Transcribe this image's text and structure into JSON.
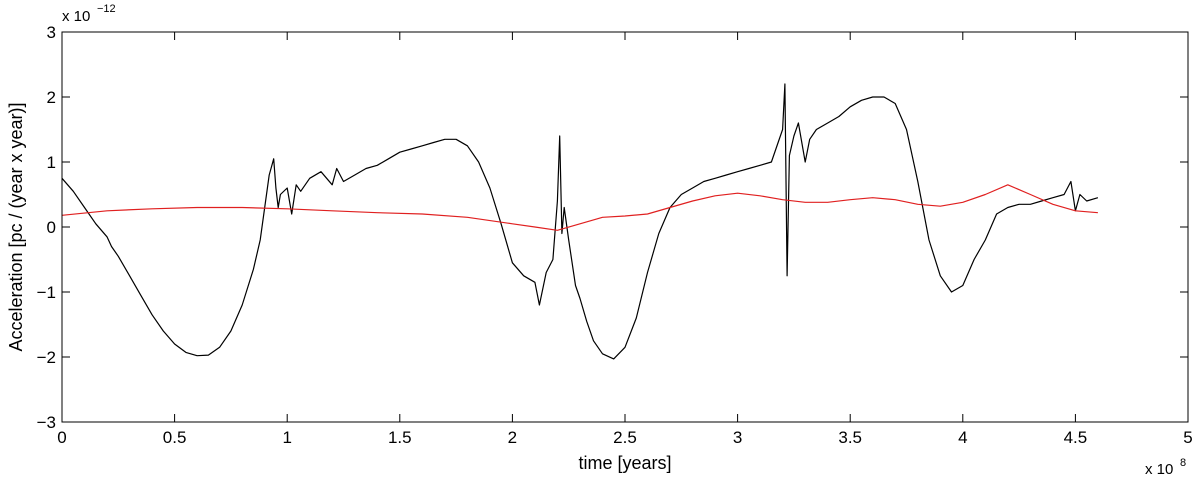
{
  "chart_data": {
    "type": "line",
    "title": "",
    "xlabel": "time [years]",
    "ylabel": "Acceleration [pc / (year x year)]",
    "x_exponent_label": {
      "base": "x 10",
      "power": "8"
    },
    "y_exponent_label": {
      "base": "x 10",
      "power": "−12"
    },
    "xlim": [
      0,
      5
    ],
    "ylim": [
      -3,
      3
    ],
    "x_ticks": [
      0,
      0.5,
      1,
      1.5,
      2,
      2.5,
      3,
      3.5,
      4,
      4.5,
      5
    ],
    "x_tick_labels": [
      "0",
      "0.5",
      "1",
      "1.5",
      "2",
      "2.5",
      "3",
      "3.5",
      "4",
      "4.5",
      "5"
    ],
    "y_ticks": [
      -3,
      -2,
      -1,
      0,
      1,
      2,
      3
    ],
    "y_tick_labels": [
      "−3",
      "−2",
      "−1",
      "0",
      "1",
      "2",
      "3"
    ],
    "grid": false,
    "legend": "none",
    "series": [
      {
        "color": "#000000",
        "x": [
          0,
          0.05,
          0.1,
          0.15,
          0.2,
          0.22,
          0.25,
          0.3,
          0.35,
          0.4,
          0.45,
          0.5,
          0.55,
          0.6,
          0.65,
          0.7,
          0.75,
          0.8,
          0.85,
          0.88,
          0.9,
          0.92,
          0.94,
          0.95,
          0.96,
          0.97,
          1.0,
          1.02,
          1.04,
          1.06,
          1.1,
          1.15,
          1.2,
          1.22,
          1.25,
          1.3,
          1.35,
          1.4,
          1.45,
          1.5,
          1.55,
          1.6,
          1.65,
          1.7,
          1.75,
          1.8,
          1.85,
          1.9,
          1.95,
          2.0,
          2.05,
          2.1,
          2.12,
          2.15,
          2.18,
          2.2,
          2.21,
          2.22,
          2.23,
          2.25,
          2.28,
          2.3,
          2.33,
          2.36,
          2.4,
          2.45,
          2.5,
          2.55,
          2.6,
          2.65,
          2.7,
          2.75,
          2.8,
          2.85,
          2.9,
          2.95,
          3.0,
          3.05,
          3.1,
          3.15,
          3.2,
          3.21,
          3.22,
          3.23,
          3.25,
          3.27,
          3.3,
          3.32,
          3.35,
          3.4,
          3.45,
          3.5,
          3.55,
          3.6,
          3.65,
          3.7,
          3.75,
          3.8,
          3.85,
          3.9,
          3.95,
          4.0,
          4.05,
          4.1,
          4.15,
          4.2,
          4.25,
          4.3,
          4.35,
          4.4,
          4.45,
          4.48,
          4.5,
          4.52,
          4.55,
          4.6
        ],
        "y": [
          0.75,
          0.55,
          0.3,
          0.05,
          -0.15,
          -0.3,
          -0.45,
          -0.75,
          -1.05,
          -1.35,
          -1.6,
          -1.8,
          -1.93,
          -1.98,
          -1.97,
          -1.85,
          -1.6,
          -1.2,
          -0.65,
          -0.2,
          0.3,
          0.8,
          1.05,
          0.6,
          0.3,
          0.5,
          0.6,
          0.2,
          0.65,
          0.55,
          0.75,
          0.85,
          0.65,
          0.9,
          0.7,
          0.8,
          0.9,
          0.95,
          1.05,
          1.15,
          1.2,
          1.25,
          1.3,
          1.35,
          1.35,
          1.25,
          1.0,
          0.6,
          0.05,
          -0.55,
          -0.75,
          -0.85,
          -1.2,
          -0.7,
          -0.5,
          0.4,
          1.4,
          -0.1,
          0.3,
          -0.2,
          -0.9,
          -1.1,
          -1.45,
          -1.75,
          -1.95,
          -2.03,
          -1.85,
          -1.4,
          -0.7,
          -0.1,
          0.3,
          0.5,
          0.6,
          0.7,
          0.75,
          0.8,
          0.85,
          0.9,
          0.95,
          1.0,
          1.5,
          2.2,
          -0.75,
          1.1,
          1.4,
          1.6,
          1.0,
          1.35,
          1.5,
          1.6,
          1.7,
          1.85,
          1.95,
          2.0,
          2.0,
          1.9,
          1.5,
          0.7,
          -0.2,
          -0.75,
          -1.0,
          -0.9,
          -0.5,
          -0.2,
          0.2,
          0.3,
          0.35,
          0.35,
          0.4,
          0.45,
          0.5,
          0.7,
          0.25,
          0.5,
          0.4,
          0.45
        ]
      },
      {
        "color": "#e02020",
        "x": [
          0,
          0.2,
          0.4,
          0.6,
          0.8,
          1.0,
          1.2,
          1.4,
          1.6,
          1.8,
          2.0,
          2.1,
          2.2,
          2.3,
          2.4,
          2.5,
          2.6,
          2.7,
          2.8,
          2.9,
          3.0,
          3.1,
          3.2,
          3.3,
          3.4,
          3.5,
          3.6,
          3.7,
          3.8,
          3.9,
          4.0,
          4.1,
          4.2,
          4.3,
          4.4,
          4.5,
          4.6
        ],
        "y": [
          0.18,
          0.25,
          0.28,
          0.3,
          0.3,
          0.28,
          0.25,
          0.22,
          0.2,
          0.15,
          0.05,
          0.0,
          -0.05,
          0.05,
          0.15,
          0.17,
          0.2,
          0.3,
          0.4,
          0.48,
          0.52,
          0.48,
          0.42,
          0.38,
          0.38,
          0.42,
          0.45,
          0.42,
          0.35,
          0.32,
          0.38,
          0.5,
          0.65,
          0.5,
          0.35,
          0.25,
          0.22
        ]
      }
    ]
  }
}
